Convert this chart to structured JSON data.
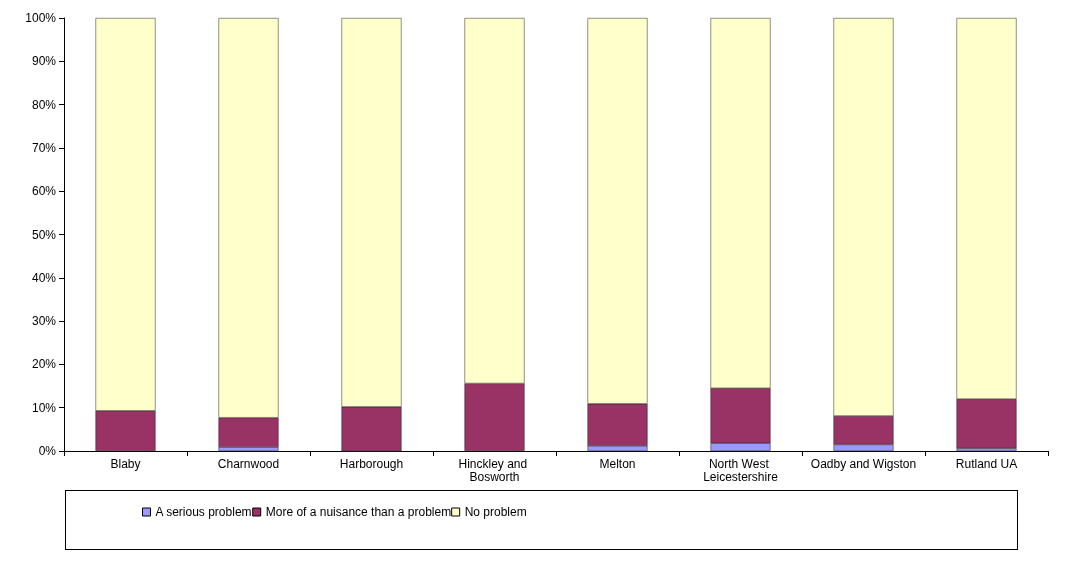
{
  "chart_data": {
    "type": "bar",
    "stacked": true,
    "categories": [
      "Blaby",
      "Charnwood",
      "Harborough",
      "Hinckley and Bosworth",
      "Melton",
      "North West Leicestershire",
      "Oadby and Wigston",
      "Rutland UA"
    ],
    "series": [
      {
        "name": "A serious problem",
        "color": "#9999ff",
        "values": [
          null,
          0.9,
          0,
          null,
          1.2,
          1.8,
          1.5,
          0.6
        ]
      },
      {
        "name": "More of a nuisance than a problem",
        "color": "#993366",
        "values": [
          9.3,
          6.8,
          10.2,
          15.6,
          9.7,
          12.7,
          6.6,
          11.4
        ]
      },
      {
        "name": "No problem",
        "color": "#ffffcc",
        "values": [
          90.7,
          92.3,
          89.8,
          84.4,
          89.1,
          85.5,
          91.9,
          88.0
        ]
      }
    ],
    "ylim": [
      0,
      100
    ],
    "yticks": [
      {
        "value": 0,
        "label": "0%"
      },
      {
        "value": 10,
        "label": "10%"
      },
      {
        "value": 20,
        "label": "20%"
      },
      {
        "value": 30,
        "label": "30%"
      },
      {
        "value": 40,
        "label": "40%"
      },
      {
        "value": 50,
        "label": "50%"
      },
      {
        "value": 60,
        "label": "60%"
      },
      {
        "value": 70,
        "label": "70%"
      },
      {
        "value": 80,
        "label": "80%"
      },
      {
        "value": 90,
        "label": "90%"
      },
      {
        "value": 100,
        "label": "100%"
      }
    ],
    "grid": false,
    "legend": "bottom"
  }
}
